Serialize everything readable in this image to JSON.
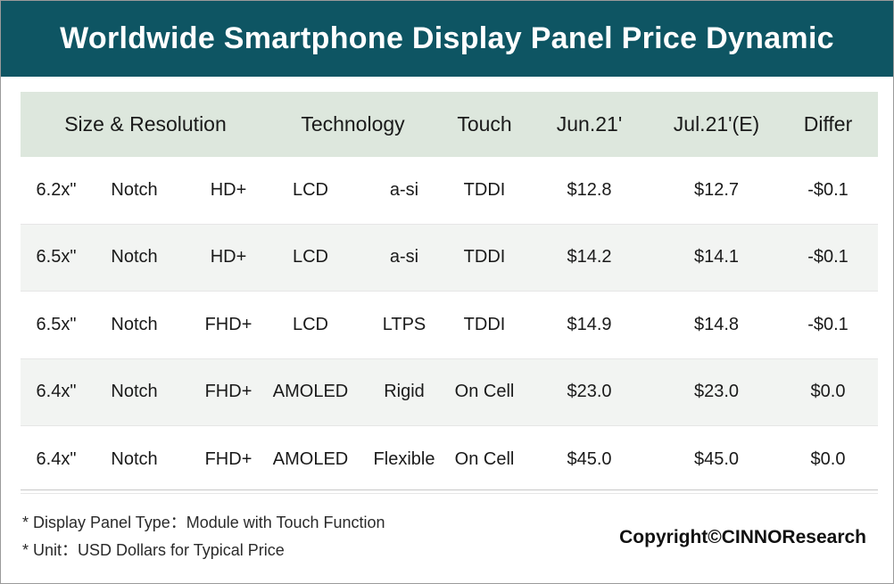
{
  "title": "Worldwide Smartphone Display Panel Price Dynamic",
  "chart_data": {
    "type": "table",
    "columns": [
      "Size & Resolution",
      "Technology",
      "Touch",
      "Jun.21'",
      "Jul.21'(E)",
      "Differ"
    ],
    "rows": [
      {
        "size": "6.2x\"",
        "form": "Notch",
        "res": "HD+",
        "tech": "LCD",
        "backplane": "a-si",
        "touch": "TDDI",
        "jun": "$12.8",
        "jul": "$12.7",
        "diff": "-$0.1"
      },
      {
        "size": "6.5x\"",
        "form": "Notch",
        "res": "HD+",
        "tech": "LCD",
        "backplane": "a-si",
        "touch": "TDDI",
        "jun": "$14.2",
        "jul": "$14.1",
        "diff": "-$0.1"
      },
      {
        "size": "6.5x\"",
        "form": "Notch",
        "res": "FHD+",
        "tech": "LCD",
        "backplane": "LTPS",
        "touch": "TDDI",
        "jun": "$14.9",
        "jul": "$14.8",
        "diff": "-$0.1"
      },
      {
        "size": "6.4x\"",
        "form": "Notch",
        "res": "FHD+",
        "tech": "AMOLED",
        "backplane": "Rigid",
        "touch": "On Cell",
        "jun": "$23.0",
        "jul": "$23.0",
        "diff": "$0.0"
      },
      {
        "size": "6.4x\"",
        "form": "Notch",
        "res": "FHD+",
        "tech": "AMOLED",
        "backplane": "Flexible",
        "touch": "On Cell",
        "jun": "$45.0",
        "jul": "$45.0",
        "diff": "$0.0"
      }
    ]
  },
  "footnotes": [
    "* Display Panel Type：Module with Touch Function",
    "* Unit：USD Dollars for Typical Price"
  ],
  "copyright": "Copyright©CINNOResearch",
  "colors": {
    "banner": "#0e5563",
    "header_row": "#dde7dd",
    "shaded_row": "#f2f4f2"
  }
}
